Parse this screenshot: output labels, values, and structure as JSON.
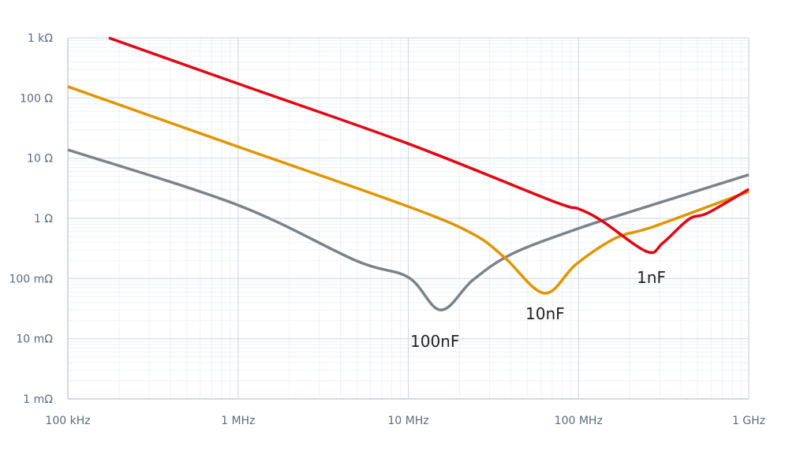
{
  "chart_data": {
    "type": "line",
    "title": "",
    "xlabel": "",
    "ylabel": "",
    "x_scale": "log",
    "y_scale": "log",
    "xlim_hz": [
      100000,
      1000000000
    ],
    "ylim_ohm": [
      0.001,
      1000
    ],
    "grid": true,
    "x_ticks": [
      {
        "value": 100000,
        "label": "100 kHz"
      },
      {
        "value": 1000000,
        "label": "1 MHz"
      },
      {
        "value": 10000000,
        "label": "10 MHz"
      },
      {
        "value": 100000000,
        "label": "100 MHz"
      },
      {
        "value": 1000000000,
        "label": "1 GHz"
      }
    ],
    "y_ticks": [
      {
        "value": 1000,
        "label": "1 kΩ"
      },
      {
        "value": 100,
        "label": "100 Ω"
      },
      {
        "value": 10,
        "label": "10 Ω"
      },
      {
        "value": 1,
        "label": "1 Ω"
      },
      {
        "value": 0.1,
        "label": "100 mΩ"
      },
      {
        "value": 0.01,
        "label": "10 mΩ"
      },
      {
        "value": 0.001,
        "label": "1 mΩ"
      }
    ],
    "series": [
      {
        "name": "1nF",
        "color": "#e30613",
        "points": [
          [
            174000,
            1000
          ],
          [
            1000000,
            173
          ],
          [
            10000000,
            17.4
          ],
          [
            70000000,
            1.95
          ],
          [
            100000000,
            1.44
          ],
          [
            137000000,
            0.91
          ],
          [
            252000000,
            0.28
          ],
          [
            313000000,
            0.39
          ],
          [
            445000000,
            0.97
          ],
          [
            575000000,
            1.23
          ],
          [
            1000000000,
            3.05
          ]
        ]
      },
      {
        "name": "10nF",
        "color": "#e39400",
        "points": [
          [
            100000,
            155
          ],
          [
            1000000,
            15.5
          ],
          [
            10000000,
            1.57
          ],
          [
            24000000,
            0.55
          ],
          [
            37000000,
            0.22
          ],
          [
            63000000,
            0.057
          ],
          [
            97000000,
            0.174
          ],
          [
            165000000,
            0.47
          ],
          [
            280000000,
            0.74
          ],
          [
            1000000000,
            2.8
          ]
        ]
      },
      {
        "name": "100nF",
        "color": "#7b8389",
        "points": [
          [
            100000,
            13.8
          ],
          [
            1000000,
            1.66
          ],
          [
            4900000,
            0.2
          ],
          [
            10000000,
            0.105
          ],
          [
            15500000,
            0.03
          ],
          [
            24000000,
            0.095
          ],
          [
            41000000,
            0.26
          ],
          [
            100000000,
            0.68
          ],
          [
            204000000,
            1.3
          ],
          [
            1000000000,
            5.3
          ]
        ]
      }
    ],
    "annotations": [
      {
        "text": "100nF",
        "series": "100nF"
      },
      {
        "text": "10nF",
        "series": "10nF"
      },
      {
        "text": "1nF",
        "series": "1nF"
      }
    ]
  }
}
